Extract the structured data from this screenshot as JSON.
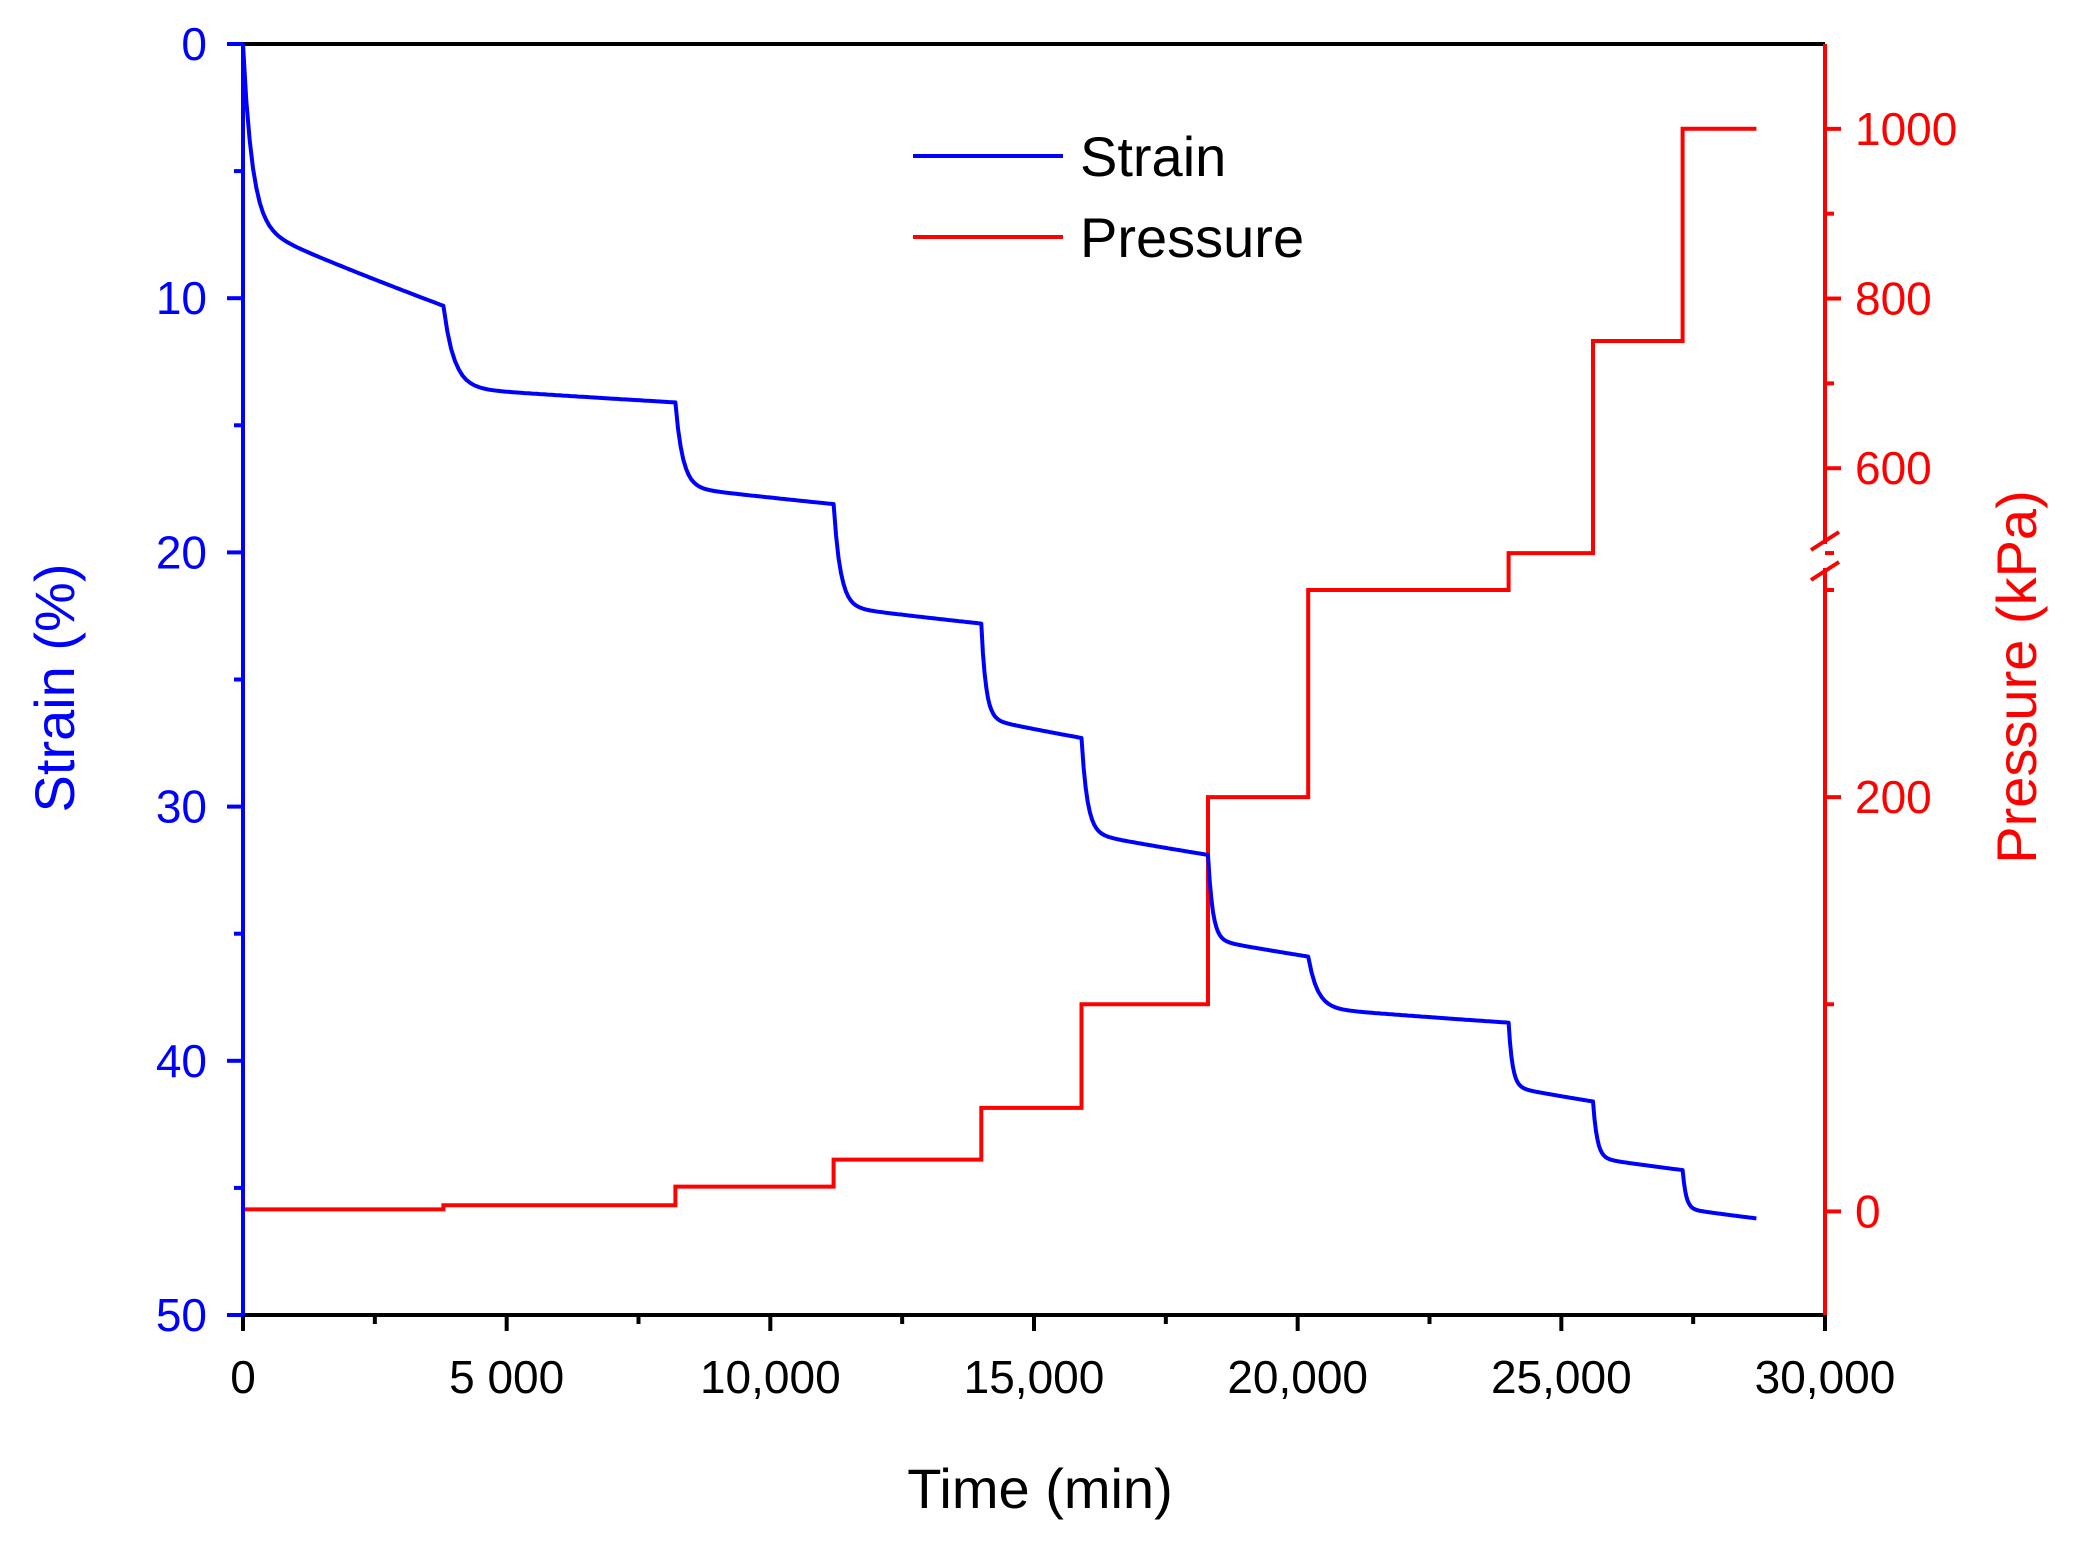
{
  "chart_data": {
    "type": "line",
    "title": "",
    "xlabel": "Time (min)",
    "ylabel_left": "Strain (%)",
    "ylabel_right": "Pressure (kPa)",
    "xlim": [
      0,
      30000
    ],
    "ylim_left": [
      0,
      50
    ],
    "left_axis_inverted": true,
    "x_ticks": [
      {
        "value": 0,
        "label": "0"
      },
      {
        "value": 5000,
        "label": "5 000"
      },
      {
        "value": 10000,
        "label": "10,000"
      },
      {
        "value": 15000,
        "label": "15,000"
      },
      {
        "value": 20000,
        "label": "20,000"
      },
      {
        "value": 25000,
        "label": "25,000"
      },
      {
        "value": 30000,
        "label": "30,000"
      }
    ],
    "left_ticks": [
      {
        "value": 0,
        "label": "0"
      },
      {
        "value": 10,
        "label": "10"
      },
      {
        "value": 20,
        "label": "20"
      },
      {
        "value": 30,
        "label": "30"
      },
      {
        "value": 40,
        "label": "40"
      },
      {
        "value": 50,
        "label": "50"
      }
    ],
    "right_axis": {
      "broken": true,
      "lower_segment": {
        "range": [
          -50,
          300
        ],
        "ticks": [
          {
            "value": 0,
            "label": "0"
          },
          {
            "value": 200,
            "label": "200"
          }
        ]
      },
      "upper_segment": {
        "range": [
          460,
          1100
        ],
        "ticks": [
          {
            "value": 600,
            "label": "600"
          },
          {
            "value": 800,
            "label": "800"
          },
          {
            "value": 1000,
            "label": "1000"
          }
        ]
      }
    },
    "legend": {
      "position": "top-center",
      "entries": [
        {
          "name": "Strain",
          "color": "#0000ff"
        },
        {
          "name": "Pressure",
          "color": "#ff0000"
        }
      ]
    },
    "series": [
      {
        "name": "Strain",
        "axis": "left",
        "color": "#0000ff",
        "stages": [
          {
            "t_start": 0,
            "t_end": 3800,
            "strain_start": 0,
            "strain_end": 10.3,
            "jump": 7.0
          },
          {
            "t_start": 3800,
            "t_end": 8200,
            "strain_start": 10.3,
            "strain_end": 14.1,
            "jump": 3.2
          },
          {
            "t_start": 8200,
            "t_end": 11200,
            "strain_start": 14.1,
            "strain_end": 18.1,
            "jump": 3.3
          },
          {
            "t_start": 11200,
            "t_end": 14000,
            "strain_start": 18.1,
            "strain_end": 22.8,
            "jump": 4.0
          },
          {
            "t_start": 14000,
            "t_end": 15900,
            "strain_start": 22.8,
            "strain_end": 27.3,
            "jump": 3.7
          },
          {
            "t_start": 15900,
            "t_end": 18300,
            "strain_start": 27.3,
            "strain_end": 31.9,
            "jump": 3.7
          },
          {
            "t_start": 18300,
            "t_end": 20200,
            "strain_start": 31.9,
            "strain_end": 35.9,
            "jump": 3.3
          },
          {
            "t_start": 20200,
            "t_end": 24000,
            "strain_start": 35.9,
            "strain_end": 38.5,
            "jump": 2.0
          },
          {
            "t_start": 24000,
            "t_end": 25600,
            "strain_start": 38.5,
            "strain_end": 41.6,
            "jump": 2.5
          },
          {
            "t_start": 25600,
            "t_end": 27300,
            "strain_start": 41.6,
            "strain_end": 44.3,
            "jump": 2.2
          },
          {
            "t_start": 27300,
            "t_end": 28700,
            "strain_start": 44.3,
            "strain_end": 46.2,
            "jump": 1.5
          }
        ]
      },
      {
        "name": "Pressure",
        "axis": "right",
        "color": "#ff0000",
        "steps": [
          {
            "t_start": 0,
            "t_end": 3800,
            "value": 1
          },
          {
            "t_start": 3800,
            "t_end": 8200,
            "value": 3
          },
          {
            "t_start": 8200,
            "t_end": 11200,
            "value": 12
          },
          {
            "t_start": 11200,
            "t_end": 14000,
            "value": 25
          },
          {
            "t_start": 14000,
            "t_end": 15900,
            "value": 50
          },
          {
            "t_start": 15900,
            "t_end": 18300,
            "value": 100
          },
          {
            "t_start": 18300,
            "t_end": 20200,
            "value": 200
          },
          {
            "t_start": 20200,
            "t_end": 24000,
            "value": 300
          },
          {
            "t_start": 24000,
            "t_end": 25600,
            "value": 500
          },
          {
            "t_start": 25600,
            "t_end": 27300,
            "value": 750
          },
          {
            "t_start": 27300,
            "t_end": 28700,
            "value": 1000
          }
        ]
      }
    ]
  }
}
